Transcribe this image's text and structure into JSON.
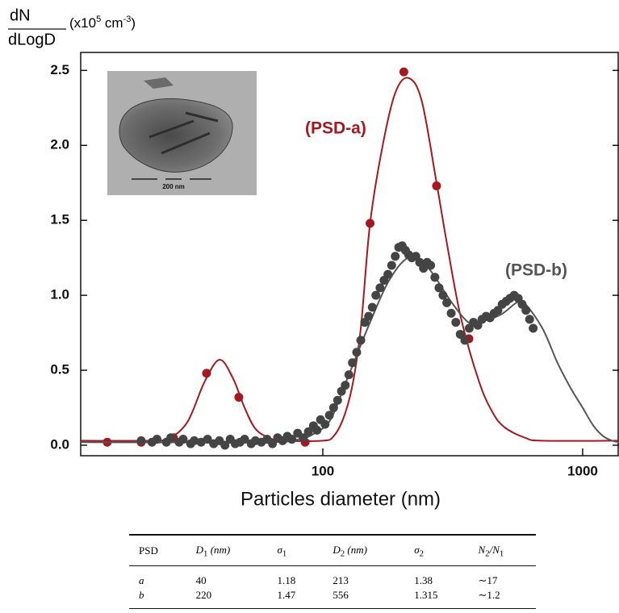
{
  "chart_data": {
    "type": "scatter",
    "x_label": "Particles diameter (nm)",
    "y_label": {
      "numerator": "dN",
      "denominator": "dLogD",
      "unit": [
        "(x10",
        "5",
        " cm",
        "-3",
        ")"
      ]
    },
    "xscale": "log",
    "xlim": [
      11.7,
      1380
    ],
    "xticks": [
      100,
      1000
    ],
    "ylim": [
      -0.07,
      2.62
    ],
    "yticks": [
      {
        "value": 0,
        "label": "0.0"
      },
      0.5,
      {
        "value": 1,
        "label": "1.0"
      },
      1.5,
      {
        "value": 2,
        "label": "2.0"
      },
      2.5
    ],
    "grid": false,
    "inset_label": "200 nm",
    "annotations": [
      {
        "text": "(PSD-a)",
        "color": "#a3191f"
      },
      {
        "text": "(PSD-b)",
        "color": "#555555"
      }
    ],
    "series": [
      {
        "mode": "line",
        "color": "#a3191f",
        "x": [
          11.7,
          20,
          25,
          30,
          35,
          40,
          45,
          50,
          55,
          62,
          70,
          100,
          110,
          120,
          130,
          140,
          152,
          170,
          190,
          213,
          240,
          274,
          300,
          340,
          400,
          450,
          500,
          600,
          700,
          1380
        ],
        "values": [
          0.03,
          0.03,
          0.04,
          0.15,
          0.42,
          0.57,
          0.45,
          0.25,
          0.11,
          0.05,
          0.03,
          0.03,
          0.06,
          0.18,
          0.4,
          0.78,
          1.48,
          2.0,
          2.35,
          2.45,
          2.3,
          1.75,
          1.35,
          0.85,
          0.42,
          0.22,
          0.12,
          0.05,
          0.03,
          0.03
        ]
      },
      {
        "mode": "markers",
        "color": "#a3191f",
        "x": [
          14.8,
          20,
          26.6,
          35.7,
          47.5,
          85.5,
          152,
          205,
          274,
          365
        ],
        "values": [
          0.02,
          0.02,
          0.05,
          0.48,
          0.32,
          0.02,
          1.48,
          2.49,
          1.73,
          0.71
        ]
      },
      {
        "mode": "line",
        "color": "#555555",
        "x": [
          11.7,
          60,
          81,
          93,
          107,
          124,
          152,
          180,
          213,
          250,
          314,
          363,
          400,
          483,
          556,
          596,
          700,
          800,
          900,
          1000,
          1100,
          1200,
          1300,
          1380
        ],
        "values": [
          0.02,
          0.02,
          0.04,
          0.08,
          0.17,
          0.44,
          0.82,
          1.1,
          1.25,
          1.2,
          0.95,
          0.82,
          0.82,
          0.87,
          0.95,
          0.95,
          0.78,
          0.55,
          0.38,
          0.25,
          0.13,
          0.06,
          0.03,
          0.02
        ]
      },
      {
        "mode": "markers",
        "color": "#444444",
        "x": [
          20,
          22,
          23,
          25,
          26,
          28,
          29,
          31,
          32,
          34,
          36,
          38,
          40,
          42,
          44,
          46,
          48,
          50,
          53,
          55,
          58,
          61,
          64,
          67,
          70,
          73,
          76,
          80,
          84,
          88,
          92,
          95,
          98,
          102,
          106,
          110,
          114,
          118,
          122,
          126,
          130,
          135,
          140,
          145,
          150,
          155,
          160,
          166,
          172,
          178,
          184,
          190,
          196,
          202,
          208,
          214,
          220,
          228,
          236,
          244,
          252,
          260,
          270,
          280,
          290,
          300,
          312,
          325,
          338,
          352,
          366,
          380,
          395,
          410,
          425,
          440,
          456,
          472,
          490,
          508,
          525,
          545,
          565,
          585,
          605,
          625,
          645
        ],
        "values": [
          0.03,
          0.02,
          0.04,
          0.02,
          0.05,
          0.02,
          0.04,
          0.01,
          0.03,
          0.02,
          0.04,
          0.01,
          0.03,
          0.0,
          0.04,
          0.01,
          0.02,
          0.04,
          0.01,
          0.03,
          0.02,
          0.04,
          0.01,
          0.05,
          0.03,
          0.06,
          0.04,
          0.08,
          0.05,
          0.09,
          0.13,
          0.1,
          0.17,
          0.14,
          0.2,
          0.25,
          0.3,
          0.36,
          0.4,
          0.47,
          0.55,
          0.62,
          0.7,
          0.82,
          0.86,
          0.92,
          1.0,
          1.05,
          1.1,
          1.14,
          1.2,
          1.26,
          1.32,
          1.33,
          1.3,
          1.27,
          1.25,
          1.26,
          1.22,
          1.18,
          1.22,
          1.2,
          1.12,
          1.05,
          1.0,
          0.95,
          0.88,
          0.82,
          0.74,
          0.7,
          0.78,
          0.82,
          0.8,
          0.84,
          0.86,
          0.85,
          0.88,
          0.9,
          0.94,
          0.96,
          0.98,
          1.0,
          0.98,
          0.94,
          0.9,
          0.84,
          0.78
        ]
      }
    ]
  },
  "table": {
    "header": [
      [
        "PSD"
      ],
      [
        "D",
        "1",
        " (nm)"
      ],
      [
        "σ",
        "1"
      ],
      [
        "D",
        "2",
        " (nm)"
      ],
      [
        "σ",
        "2"
      ],
      [
        "N",
        "2",
        "/N",
        "1"
      ]
    ],
    "rows": [
      [
        "a",
        "40",
        "1.18",
        "213",
        "1.38",
        "∼17"
      ],
      [
        "b",
        "220",
        "1.47",
        "556",
        "1.315",
        "∼1.2"
      ]
    ]
  }
}
